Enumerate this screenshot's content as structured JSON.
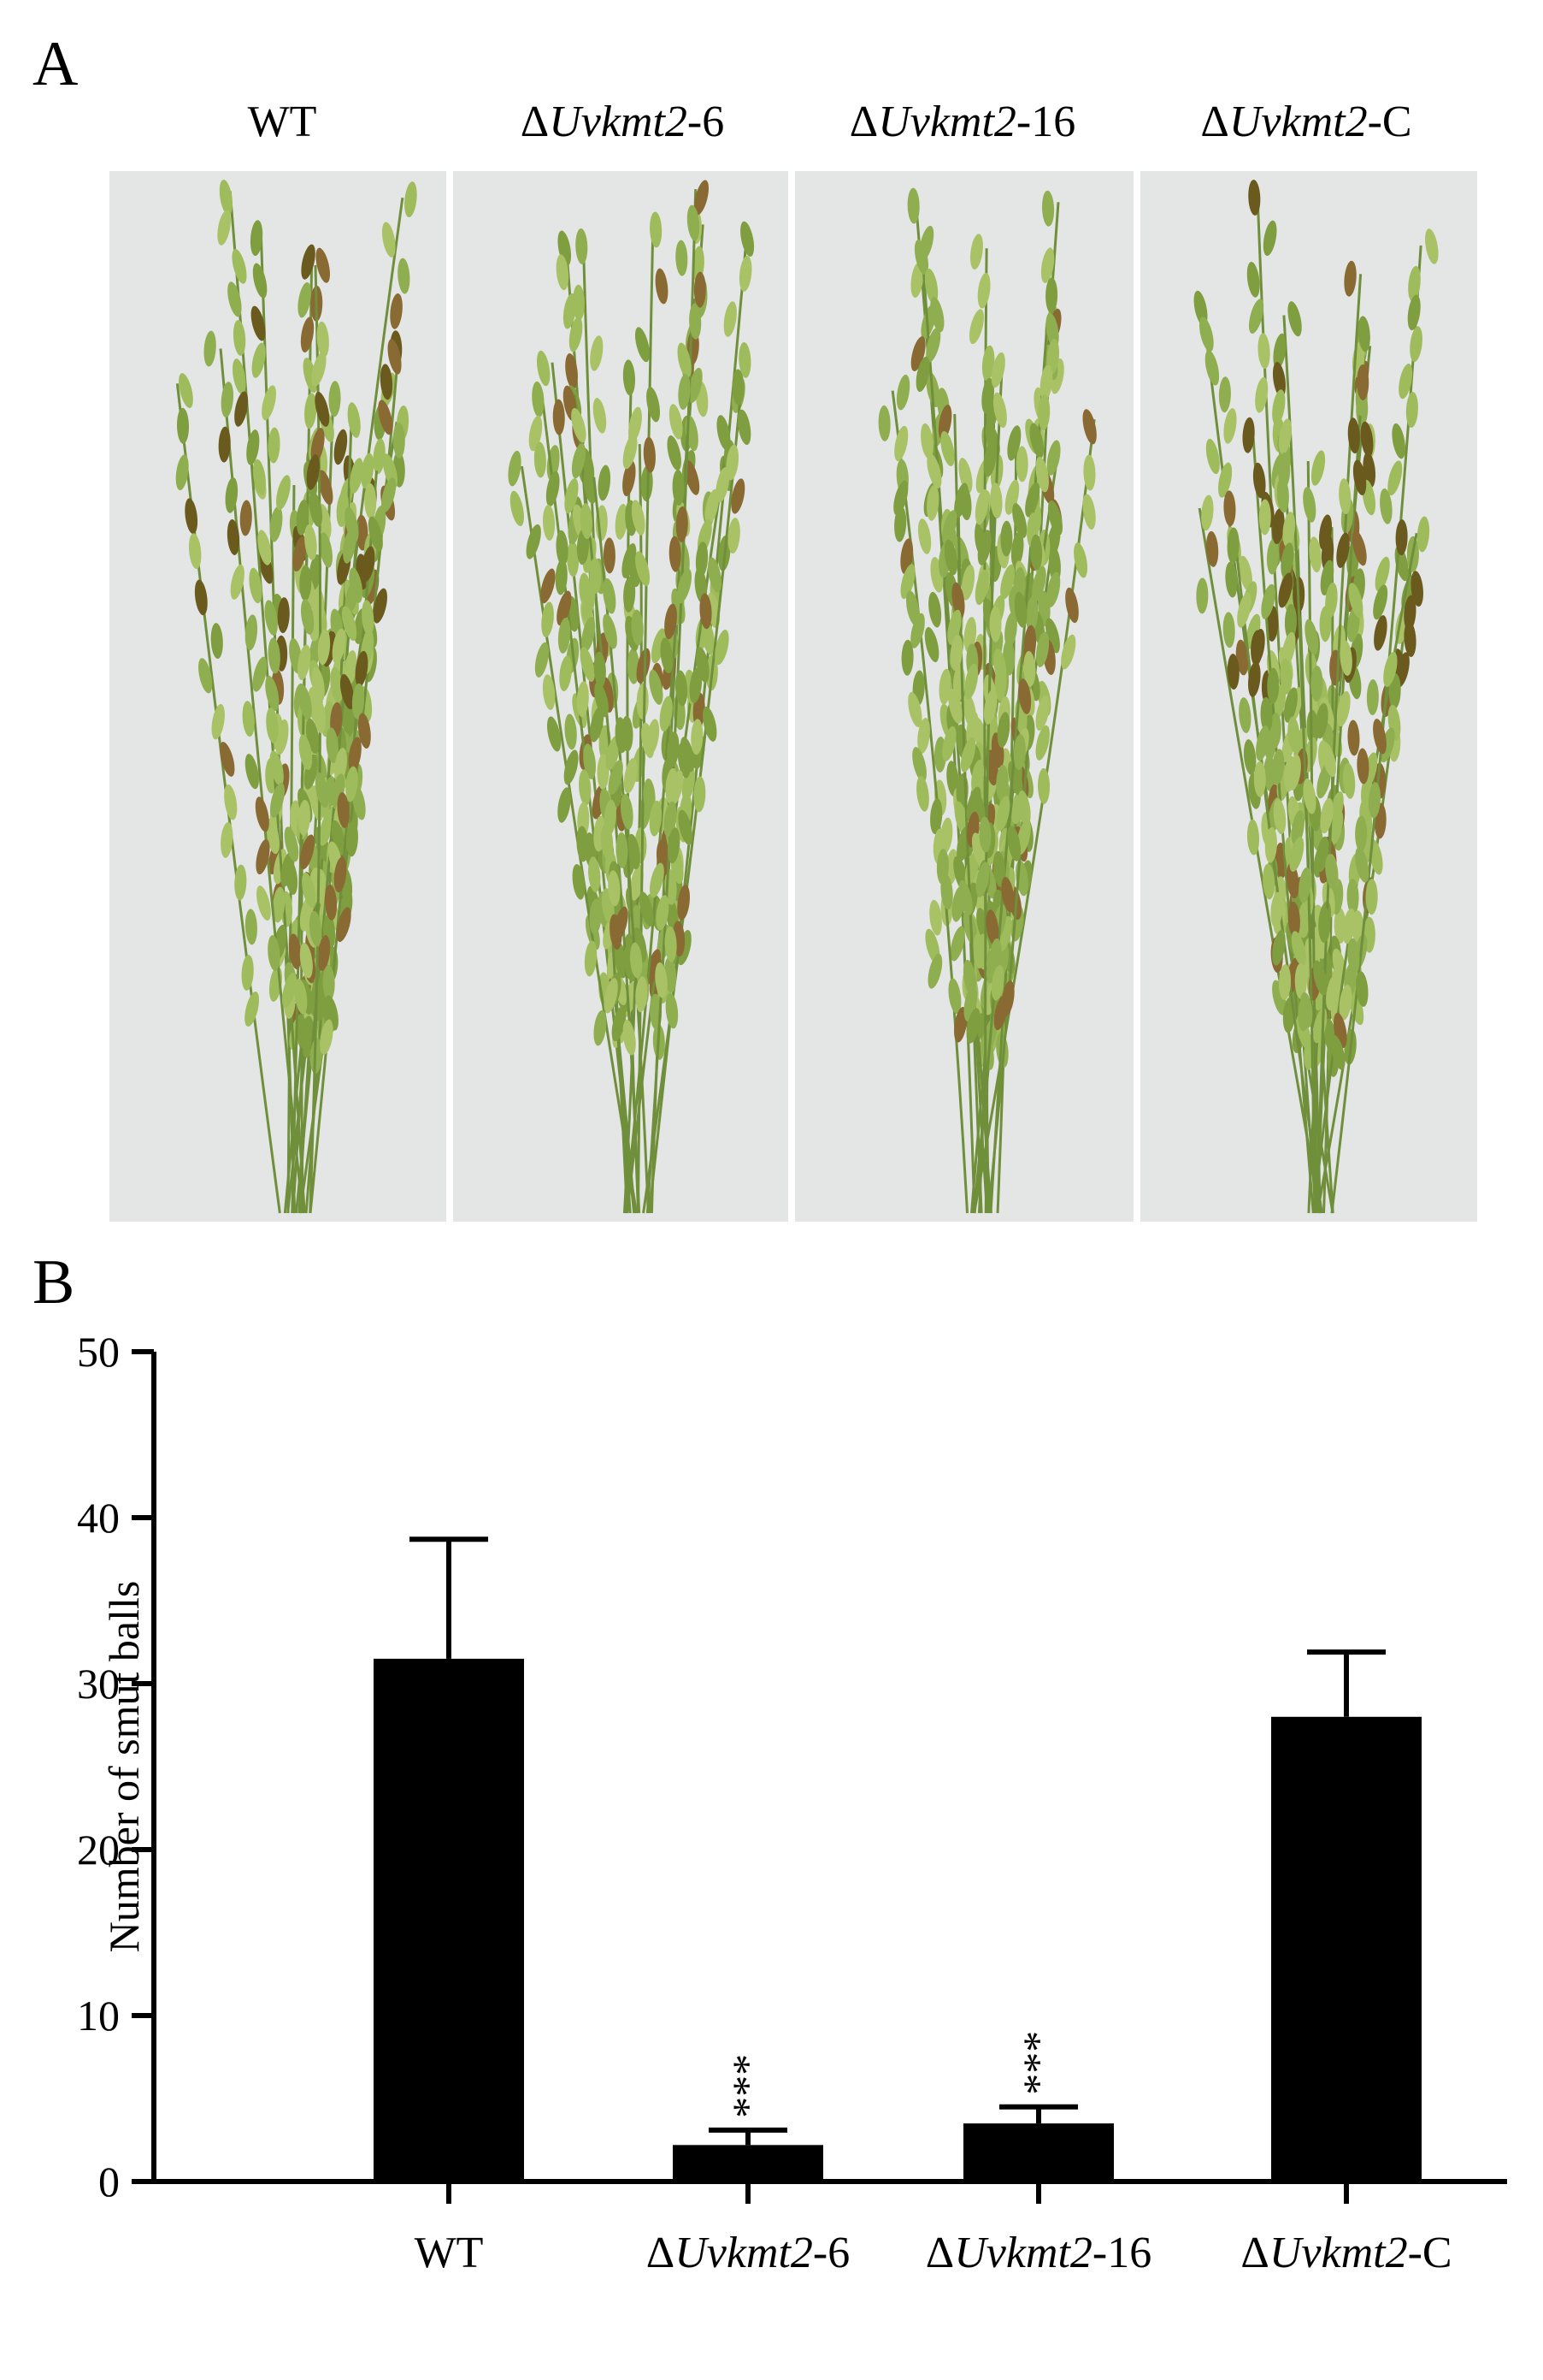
{
  "panels": {
    "a_letter": "A",
    "b_letter": "B",
    "photo_labels": [
      {
        "text": "WT",
        "prefix": "",
        "italic": "",
        "suffix": ""
      },
      {
        "text": "",
        "prefix": "Δ",
        "italic": "Uvkmt2",
        "suffix": "-6"
      },
      {
        "text": "",
        "prefix": "Δ",
        "italic": "Uvkmt2",
        "suffix": "-16"
      },
      {
        "text": "",
        "prefix": "Δ",
        "italic": "Uvkmt2",
        "suffix": "-C"
      }
    ]
  },
  "chart_data": {
    "type": "bar",
    "categories": [
      {
        "prefix": "",
        "italic": "",
        "suffix": "WT"
      },
      {
        "prefix": "Δ",
        "italic": "Uvkmt2",
        "suffix": "-6"
      },
      {
        "prefix": "Δ",
        "italic": "Uvkmt2",
        "suffix": "-16"
      },
      {
        "prefix": "Δ",
        "italic": "Uvkmt2",
        "suffix": "-C"
      }
    ],
    "values": [
      31.5,
      2.2,
      3.5,
      28.0
    ],
    "errors": [
      7.2,
      0.9,
      1.0,
      3.9
    ],
    "significance": [
      "",
      "***",
      "***",
      ""
    ],
    "ylabel": "Number of smut balls",
    "xlabel": "",
    "title": "",
    "ylim": [
      0,
      50
    ],
    "yticks": [
      0,
      10,
      20,
      30,
      40,
      50
    ],
    "bar_color": "#000000",
    "grid": false
  }
}
